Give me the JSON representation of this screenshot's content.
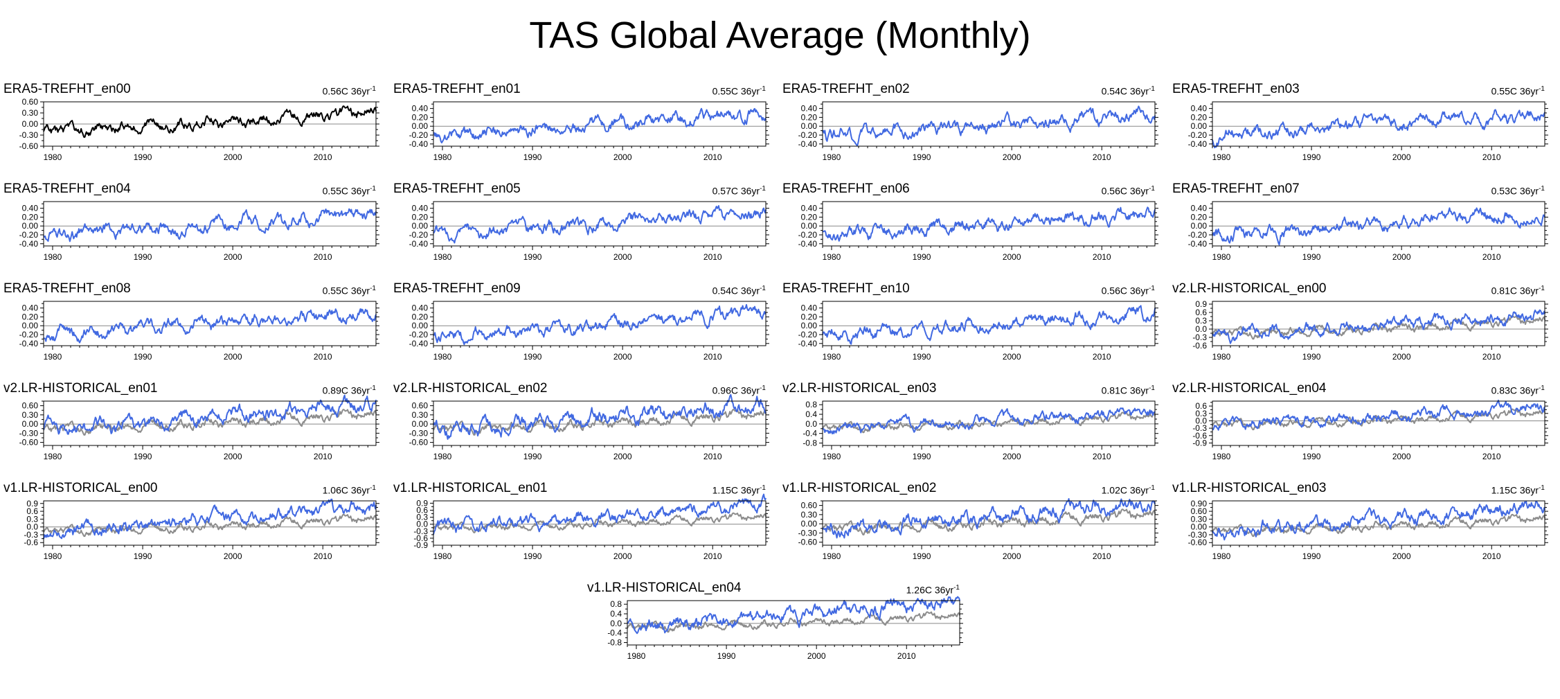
{
  "title": "TAS Global Average (Monthly)",
  "chart_data": {
    "type": "line",
    "layout": "5 rows x 4 panels plus one centered panel",
    "x": {
      "start": 1979,
      "end": 2015.9,
      "step": "monthly",
      "ticks": [
        "1980",
        "1990",
        "2000",
        "2010"
      ]
    },
    "colors": {
      "reference": "#000000",
      "member": "#4169e1",
      "overlay": "#8c8c8c",
      "zero_line": "#888888"
    },
    "panels": [
      {
        "name": "ERA5-TREFHT_en00",
        "trend": "0.56C 36yr",
        "trend_unit_sup": "-1",
        "line_color": "#000000",
        "overlay": false,
        "amp": 1.0,
        "seed": 1,
        "ylim": [
          -0.6,
          0.6
        ],
        "yticks": [
          "0.60",
          "0.30",
          "0.00",
          "-0.30",
          "-0.60"
        ]
      },
      {
        "name": "ERA5-TREFHT_en01",
        "trend": "0.55C 36yr",
        "trend_unit_sup": "-1",
        "line_color": "#4169e1",
        "overlay": false,
        "amp": 1.0,
        "seed": 2,
        "ylim": [
          -0.45,
          0.55
        ],
        "yticks": [
          "0.40",
          "0.20",
          "0.00",
          "-0.20",
          "-0.40"
        ]
      },
      {
        "name": "ERA5-TREFHT_en02",
        "trend": "0.54C 36yr",
        "trend_unit_sup": "-1",
        "line_color": "#4169e1",
        "overlay": false,
        "amp": 1.0,
        "seed": 3,
        "ylim": [
          -0.45,
          0.55
        ],
        "yticks": [
          "0.40",
          "0.20",
          "0.00",
          "-0.20",
          "-0.40"
        ]
      },
      {
        "name": "ERA5-TREFHT_en03",
        "trend": "0.55C 36yr",
        "trend_unit_sup": "-1",
        "line_color": "#4169e1",
        "overlay": false,
        "amp": 1.0,
        "seed": 4,
        "ylim": [
          -0.45,
          0.55
        ],
        "yticks": [
          "0.40",
          "0.20",
          "0.00",
          "-0.20",
          "-0.40"
        ]
      },
      {
        "name": "ERA5-TREFHT_en04",
        "trend": "0.55C 36yr",
        "trend_unit_sup": "-1",
        "line_color": "#4169e1",
        "overlay": false,
        "amp": 1.0,
        "seed": 5,
        "ylim": [
          -0.45,
          0.55
        ],
        "yticks": [
          "0.40",
          "0.20",
          "0.00",
          "-0.20",
          "-0.40"
        ]
      },
      {
        "name": "ERA5-TREFHT_en05",
        "trend": "0.57C 36yr",
        "trend_unit_sup": "-1",
        "line_color": "#4169e1",
        "overlay": false,
        "amp": 1.0,
        "seed": 6,
        "ylim": [
          -0.45,
          0.55
        ],
        "yticks": [
          "0.40",
          "0.20",
          "0.00",
          "-0.20",
          "-0.40"
        ]
      },
      {
        "name": "ERA5-TREFHT_en06",
        "trend": "0.56C 36yr",
        "trend_unit_sup": "-1",
        "line_color": "#4169e1",
        "overlay": false,
        "amp": 1.0,
        "seed": 7,
        "ylim": [
          -0.45,
          0.55
        ],
        "yticks": [
          "0.40",
          "0.20",
          "0.00",
          "-0.20",
          "-0.40"
        ]
      },
      {
        "name": "ERA5-TREFHT_en07",
        "trend": "0.53C 36yr",
        "trend_unit_sup": "-1",
        "line_color": "#4169e1",
        "overlay": false,
        "amp": 1.0,
        "seed": 8,
        "ylim": [
          -0.45,
          0.55
        ],
        "yticks": [
          "0.40",
          "0.20",
          "0.00",
          "-0.20",
          "-0.40"
        ]
      },
      {
        "name": "ERA5-TREFHT_en08",
        "trend": "0.55C 36yr",
        "trend_unit_sup": "-1",
        "line_color": "#4169e1",
        "overlay": false,
        "amp": 1.0,
        "seed": 9,
        "ylim": [
          -0.45,
          0.55
        ],
        "yticks": [
          "0.40",
          "0.20",
          "0.00",
          "-0.20",
          "-0.40"
        ]
      },
      {
        "name": "ERA5-TREFHT_en09",
        "trend": "0.54C 36yr",
        "trend_unit_sup": "-1",
        "line_color": "#4169e1",
        "overlay": false,
        "amp": 1.0,
        "seed": 10,
        "ylim": [
          -0.45,
          0.55
        ],
        "yticks": [
          "0.40",
          "0.20",
          "0.00",
          "-0.20",
          "-0.40"
        ]
      },
      {
        "name": "ERA5-TREFHT_en10",
        "trend": "0.56C 36yr",
        "trend_unit_sup": "-1",
        "line_color": "#4169e1",
        "overlay": false,
        "amp": 1.0,
        "seed": 11,
        "ylim": [
          -0.45,
          0.55
        ],
        "yticks": [
          "0.40",
          "0.20",
          "0.00",
          "-0.20",
          "-0.40"
        ]
      },
      {
        "name": "v2.LR-HISTORICAL_en00",
        "trend": "0.81C 36yr",
        "trend_unit_sup": "-1",
        "line_color": "#4169e1",
        "overlay": true,
        "amp": 1.5,
        "seed": 12,
        "ylim": [
          -0.6,
          1.0
        ],
        "yticks": [
          "0.9",
          "0.6",
          "0.3",
          "0.0",
          "-0.3",
          "-0.6"
        ]
      },
      {
        "name": "v2.LR-HISTORICAL_en01",
        "trend": "0.89C 36yr",
        "trend_unit_sup": "-1",
        "line_color": "#4169e1",
        "overlay": true,
        "amp": 1.6,
        "seed": 13,
        "ylim": [
          -0.7,
          0.75
        ],
        "yticks": [
          "0.60",
          "0.30",
          "0.00",
          "-0.30",
          "-0.60"
        ]
      },
      {
        "name": "v2.LR-HISTORICAL_en02",
        "trend": "0.96C 36yr",
        "trend_unit_sup": "-1",
        "line_color": "#4169e1",
        "overlay": true,
        "amp": 1.7,
        "seed": 14,
        "ylim": [
          -0.7,
          0.75
        ],
        "yticks": [
          "0.60",
          "0.30",
          "0.00",
          "-0.30",
          "-0.60"
        ]
      },
      {
        "name": "v2.LR-HISTORICAL_en03",
        "trend": "0.81C 36yr",
        "trend_unit_sup": "-1",
        "line_color": "#4169e1",
        "overlay": true,
        "amp": 1.5,
        "seed": 15,
        "ylim": [
          -0.9,
          0.95
        ],
        "yticks": [
          "0.8",
          "0.4",
          "0.0",
          "-0.4",
          "-0.8"
        ]
      },
      {
        "name": "v2.LR-HISTORICAL_en04",
        "trend": "0.83C 36yr",
        "trend_unit_sup": "-1",
        "line_color": "#4169e1",
        "overlay": true,
        "amp": 1.5,
        "seed": 16,
        "ylim": [
          -1.0,
          0.8
        ],
        "yticks": [
          "0.6",
          "0.3",
          "0.0",
          "-0.3",
          "-0.6",
          "-0.9"
        ]
      },
      {
        "name": "v1.LR-HISTORICAL_en00",
        "trend": "1.06C 36yr",
        "trend_unit_sup": "-1",
        "line_color": "#4169e1",
        "overlay": true,
        "amp": 1.7,
        "seed": 17,
        "ylim": [
          -0.7,
          1.0
        ],
        "yticks": [
          "0.9",
          "0.6",
          "0.3",
          "0.0",
          "-0.3",
          "-0.6"
        ]
      },
      {
        "name": "v1.LR-HISTORICAL_en01",
        "trend": "1.15C 36yr",
        "trend_unit_sup": "-1",
        "line_color": "#4169e1",
        "overlay": true,
        "amp": 1.8,
        "seed": 18,
        "ylim": [
          -0.9,
          1.0
        ],
        "yticks": [
          "0.9",
          "0.6",
          "0.3",
          "0.0",
          "-0.3",
          "-0.6",
          "-0.9"
        ]
      },
      {
        "name": "v1.LR-HISTORICAL_en02",
        "trend": "1.02C 36yr",
        "trend_unit_sup": "-1",
        "line_color": "#4169e1",
        "overlay": true,
        "amp": 1.6,
        "seed": 19,
        "ylim": [
          -0.7,
          0.75
        ],
        "yticks": [
          "0.60",
          "0.30",
          "0.00",
          "-0.30",
          "-0.60"
        ]
      },
      {
        "name": "v1.LR-HISTORICAL_en03",
        "trend": "1.15C 36yr",
        "trend_unit_sup": "-1",
        "line_color": "#4169e1",
        "overlay": true,
        "amp": 1.8,
        "seed": 20,
        "ylim": [
          -0.7,
          1.0
        ],
        "yticks": [
          "0.90",
          "0.60",
          "0.30",
          "0.00",
          "-0.30",
          "-0.60"
        ]
      },
      {
        "name": "v1.LR-HISTORICAL_en04",
        "trend": "1.26C 36yr",
        "trend_unit_sup": "-1",
        "line_color": "#4169e1",
        "overlay": true,
        "amp": 2.0,
        "seed": 21,
        "ylim": [
          -0.9,
          0.95
        ],
        "yticks": [
          "0.8",
          "0.4",
          "0.0",
          "-0.4",
          "-0.8"
        ]
      }
    ]
  }
}
